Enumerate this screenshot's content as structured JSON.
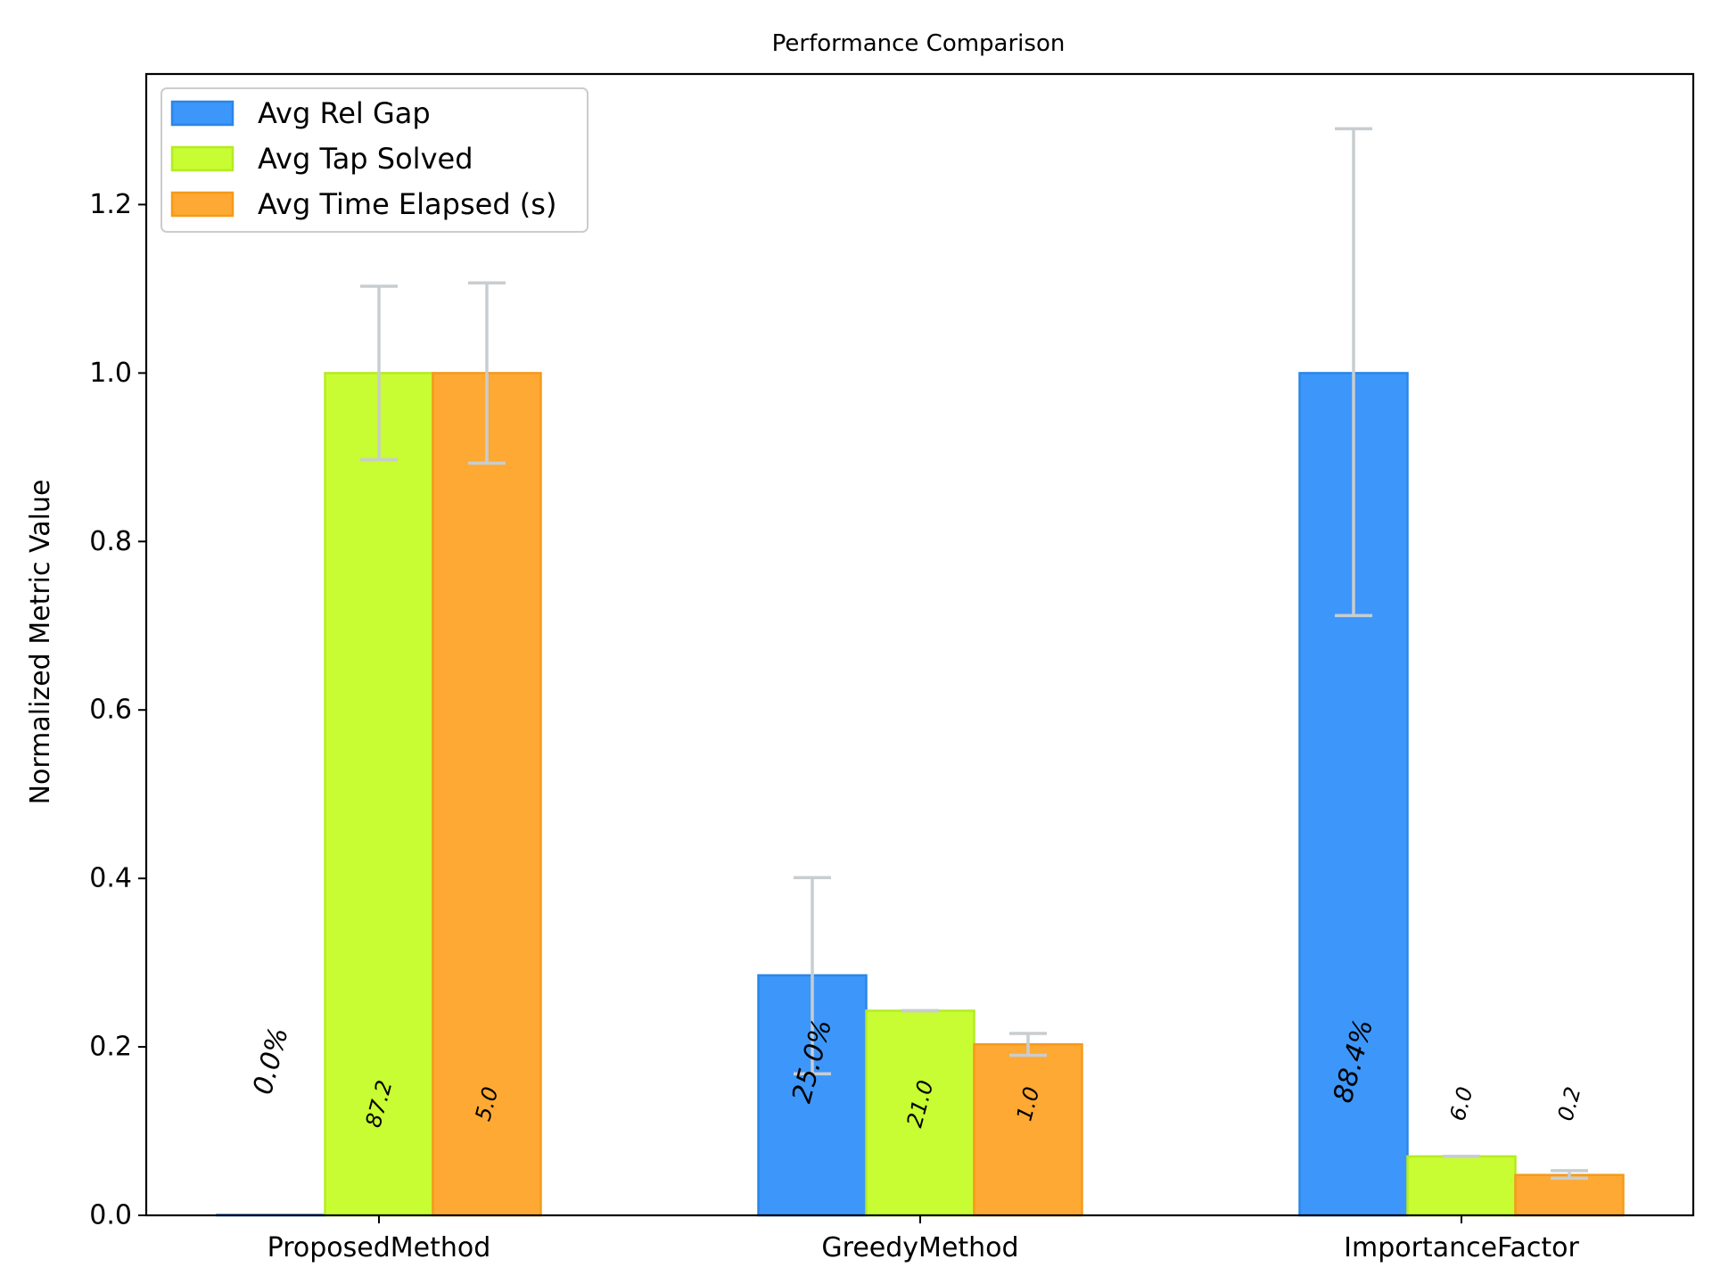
{
  "chart_data": {
    "type": "bar",
    "title": "Performance Comparison",
    "xlabel": "",
    "ylabel": "Normalized Metric Value",
    "ylim": [
      0,
      1.355
    ],
    "yticks": [
      0.0,
      0.2,
      0.4,
      0.6,
      0.8,
      1.0,
      1.2
    ],
    "ytick_labels": [
      "0.0",
      "0.2",
      "0.4",
      "0.6",
      "0.8",
      "1.0",
      "1.2"
    ],
    "categories": [
      "ProposedMethod",
      "GreedyMethod",
      "ImportanceFactor"
    ],
    "legend_position": "top-left",
    "grid": false,
    "series": [
      {
        "name": "Avg Rel Gap",
        "color": "#3d97fb",
        "edge": "#2a86e8",
        "values": [
          0.0,
          0.285,
          1.0
        ],
        "err_low": [
          0.0,
          0.168,
          0.712
        ],
        "err_high": [
          0.0,
          0.401,
          1.29
        ],
        "labels": [
          "0.0%",
          "25.0%",
          "88.4%"
        ],
        "label_size": [
          30,
          30,
          30
        ]
      },
      {
        "name": "Avg Tap Solved",
        "color": "#c8fc33",
        "edge": "#b5eb22",
        "values": [
          1.0,
          0.243,
          0.07
        ],
        "err_low": [
          0.897,
          0.243,
          0.07
        ],
        "err_high": [
          1.103,
          0.243,
          0.07
        ],
        "labels": [
          "87.2",
          "21.0",
          "6.0"
        ],
        "label_size": [
          24,
          24,
          24
        ]
      },
      {
        "name": "Avg Time Elapsed (s)",
        "color": "#fea933",
        "edge": "#f59a1a",
        "values": [
          1.0,
          0.203,
          0.048
        ],
        "err_low": [
          0.893,
          0.19,
          0.044
        ],
        "err_high": [
          1.107,
          0.216,
          0.053
        ],
        "labels": [
          "5.0",
          "1.0",
          "0.2"
        ],
        "label_size": [
          24,
          24,
          24
        ]
      }
    ]
  }
}
